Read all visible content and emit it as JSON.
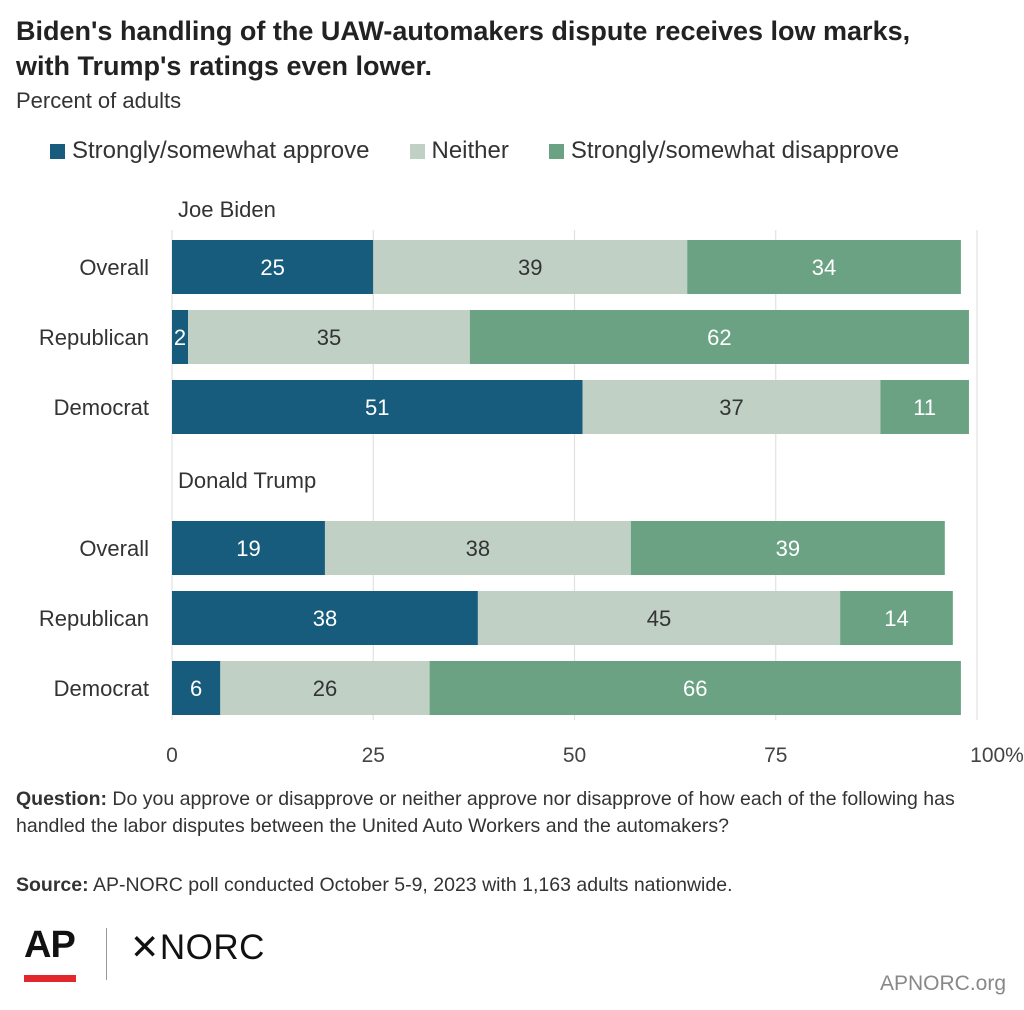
{
  "header": {
    "title_line1": "Biden's handling of the UAW-automakers dispute receives low marks,",
    "title_line2": "with Trump's ratings even lower.",
    "subtitle": "Percent of adults"
  },
  "colors": {
    "approve": "#175c7c",
    "neither": "#c0d0c4",
    "disapprove": "#6aa283"
  },
  "legend": [
    {
      "label": "Strongly/somewhat approve",
      "color": "#175c7c"
    },
    {
      "label": "Neither",
      "color": "#c0d0c4"
    },
    {
      "label": "Strongly/somewhat disapprove",
      "color": "#6aa283"
    }
  ],
  "chart_data": {
    "type": "bar",
    "orientation": "horizontal",
    "stacked": true,
    "xlim": [
      0,
      100
    ],
    "x_ticks": [
      "0",
      "25",
      "50",
      "75",
      "100%"
    ],
    "grid": true,
    "series": [
      {
        "name": "Strongly/somewhat approve"
      },
      {
        "name": "Neither"
      },
      {
        "name": "Strongly/somewhat disapprove"
      }
    ],
    "groups": [
      {
        "name": "Joe Biden",
        "rows": [
          {
            "label": "Overall",
            "values": [
              25,
              39,
              34
            ]
          },
          {
            "label": "Republican",
            "values": [
              2,
              35,
              62
            ]
          },
          {
            "label": "Democrat",
            "values": [
              51,
              37,
              11
            ]
          }
        ]
      },
      {
        "name": "Donald Trump",
        "rows": [
          {
            "label": "Overall",
            "values": [
              19,
              38,
              39
            ]
          },
          {
            "label": "Republican",
            "values": [
              38,
              45,
              14
            ]
          },
          {
            "label": "Democrat",
            "values": [
              6,
              26,
              66
            ]
          }
        ]
      }
    ]
  },
  "footer": {
    "question_label": "Question:",
    "question_text": " Do you approve or disapprove or neither approve nor disapprove of how each of the following has handled the labor disputes between the United Auto Workers and the automakers?",
    "source_label": "Source:",
    "source_text": " AP-NORC poll conducted October 5-9, 2023 with 1,163 adults nationwide.",
    "logo_ap": "AP",
    "logo_norc": "✕NORC",
    "site": "APNORC.org"
  }
}
